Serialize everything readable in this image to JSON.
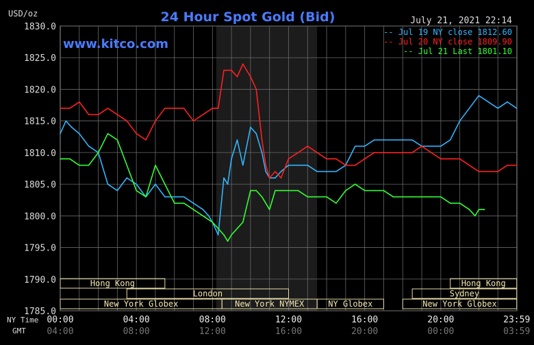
{
  "chart_data": {
    "type": "line",
    "title": "24 Hour Spot Gold (Bid)",
    "ylabel": "USD/oz",
    "timestamp": "July 21, 2021 22:14",
    "watermark": "www.kitco.com",
    "ylim": [
      1785,
      1830
    ],
    "yticks": [
      "1830.0",
      "1825.0",
      "1820.0",
      "1815.0",
      "1810.0",
      "1805.0",
      "1800.0",
      "1795.0",
      "1790.0",
      "1785.0"
    ],
    "xlim": [
      0,
      24
    ],
    "xaxis_ny_label": "NY Time",
    "xaxis_gmt_label": "GMT",
    "xticks_ny": [
      "00:00",
      "04:00",
      "08:00",
      "12:00",
      "16:00",
      "20:00",
      "23:59"
    ],
    "xticks_gmt": [
      "04:00",
      "08:00",
      "12:00",
      "16:00",
      "20:00",
      "00:00",
      "03:59"
    ],
    "grid": true,
    "legend_position": "top-right",
    "series": [
      {
        "name": "Jul 19 NY close 1812.60",
        "color": "#33b5ff",
        "x": [
          0,
          0.3,
          0.6,
          1,
          1.5,
          2,
          2.5,
          3,
          3.5,
          4,
          4.5,
          5,
          5.5,
          6,
          6.5,
          7,
          7.5,
          7.8,
          8,
          8.3,
          8.6,
          8.8,
          9,
          9.3,
          9.6,
          10,
          10.3,
          10.6,
          10.8,
          11,
          11.3,
          11.6,
          12,
          12.5,
          13,
          13.5,
          14,
          14.5,
          15,
          15.5,
          16,
          16.5,
          17,
          17.5,
          18,
          18.5,
          19,
          19.5,
          20,
          20.5,
          21,
          21.5,
          22,
          22.5,
          23,
          23.5,
          23.99
        ],
        "values": [
          1813,
          1815,
          1814,
          1813,
          1811,
          1810,
          1805,
          1804,
          1806,
          1805,
          1803,
          1805,
          1803,
          1803,
          1803,
          1802,
          1801,
          1800,
          1799,
          1797,
          1806,
          1805,
          1809,
          1812,
          1808,
          1814,
          1813,
          1810,
          1807,
          1806,
          1806,
          1807,
          1808,
          1808,
          1808,
          1807,
          1807,
          1807,
          1808,
          1811,
          1811,
          1812,
          1812,
          1812,
          1812,
          1812,
          1811,
          1811,
          1811,
          1812,
          1815,
          1817,
          1819,
          1818,
          1817,
          1818,
          1817
        ]
      },
      {
        "name": "Jul 20 NY close 1809.90",
        "color": "#ff2020",
        "x": [
          0,
          0.5,
          1,
          1.5,
          2,
          2.5,
          3,
          3.5,
          4,
          4.5,
          5,
          5.5,
          6,
          6.5,
          7,
          7.5,
          8,
          8.3,
          8.6,
          9,
          9.3,
          9.6,
          10,
          10.3,
          10.6,
          10.8,
          11,
          11.3,
          11.6,
          12,
          12.5,
          13,
          13.5,
          14,
          14.5,
          15,
          15.5,
          16,
          16.5,
          17,
          17.5,
          18,
          18.5,
          19,
          19.5,
          20,
          20.5,
          21,
          21.5,
          22,
          22.5,
          23,
          23.5,
          23.99
        ],
        "values": [
          1817,
          1817,
          1818,
          1816,
          1816,
          1817,
          1816,
          1815,
          1813,
          1812,
          1815,
          1817,
          1817,
          1817,
          1815,
          1816,
          1817,
          1817,
          1823,
          1823,
          1822,
          1824,
          1822,
          1820,
          1812,
          1808,
          1806,
          1807,
          1806,
          1809,
          1810,
          1811,
          1810,
          1809,
          1809,
          1808,
          1808,
          1809,
          1810,
          1810,
          1810,
          1810,
          1810,
          1811,
          1810,
          1809,
          1809,
          1809,
          1808,
          1807,
          1807,
          1807,
          1808,
          1808
        ]
      },
      {
        "name": "Jul 21 Last 1801.10",
        "color": "#33ff33",
        "x": [
          0,
          0.5,
          1,
          1.5,
          2,
          2.5,
          3,
          3.5,
          4,
          4.5,
          5,
          5.5,
          6,
          6.5,
          7,
          7.5,
          8,
          8.3,
          8.6,
          8.8,
          9,
          9.3,
          9.6,
          10,
          10.3,
          10.6,
          10.8,
          11,
          11.3,
          11.6,
          12,
          12.5,
          13,
          13.5,
          14,
          14.5,
          15,
          15.5,
          16,
          16.5,
          17,
          17.5,
          18,
          18.5,
          19,
          19.5,
          20,
          20.5,
          21,
          21.5,
          21.8,
          22,
          22.3
        ],
        "values": [
          1809,
          1809,
          1808,
          1808,
          1810,
          1813,
          1812,
          1808,
          1804,
          1803,
          1808,
          1805,
          1802,
          1802,
          1801,
          1800,
          1799,
          1798,
          1797,
          1796,
          1797,
          1798,
          1799,
          1804,
          1804,
          1803,
          1802,
          1801,
          1804,
          1804,
          1804,
          1804,
          1803,
          1803,
          1803,
          1802,
          1804,
          1805,
          1804,
          1804,
          1804,
          1803,
          1803,
          1803,
          1803,
          1803,
          1803,
          1802,
          1802,
          1801,
          1800,
          1801,
          1801
        ]
      }
    ],
    "sessions": [
      {
        "label": "Hong Kong",
        "row": 0,
        "start": 0,
        "end": 5.5
      },
      {
        "label": "London",
        "row": 1,
        "start": 3.5,
        "end": 12
      },
      {
        "label": "New York Globex",
        "row": 2,
        "start": 0,
        "end": 8.5
      },
      {
        "label": "New York NYMEX",
        "row": 2,
        "start": 8.5,
        "end": 13.5
      },
      {
        "label": "NY Globex",
        "row": 2,
        "start": 13.5,
        "end": 17
      },
      {
        "label": "Hong Kong",
        "row": 0,
        "start": 20.5,
        "end": 23.99
      },
      {
        "label": "Sydney",
        "row": 1,
        "start": 18.5,
        "end": 23.99
      },
      {
        "label": "New York Globex",
        "row": 2,
        "start": 18,
        "end": 23.99
      }
    ],
    "highlight_range": [
      8.2,
      13.5
    ]
  }
}
